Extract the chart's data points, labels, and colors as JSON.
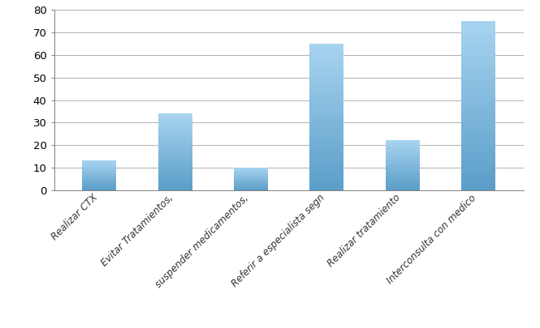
{
  "categories": [
    "Realizar CTX",
    "Evitar Tratamientos,",
    "suspender medicamentos,",
    "Referir a especialista segn",
    "Realizar tratamiento",
    "Interconsulta con medico"
  ],
  "values": [
    13,
    34,
    10,
    65,
    22,
    75
  ],
  "bar_color_top": "#a8d4f0",
  "bar_color_bottom": "#5b9ec9",
  "ylim": [
    0,
    80
  ],
  "yticks": [
    0,
    10,
    20,
    30,
    40,
    50,
    60,
    70,
    80
  ],
  "background_color": "#ffffff",
  "grid_color": "#b0b0b0",
  "label_fontsize": 8.5,
  "tick_fontsize": 9.5,
  "bar_width": 0.45,
  "rotation": 45
}
